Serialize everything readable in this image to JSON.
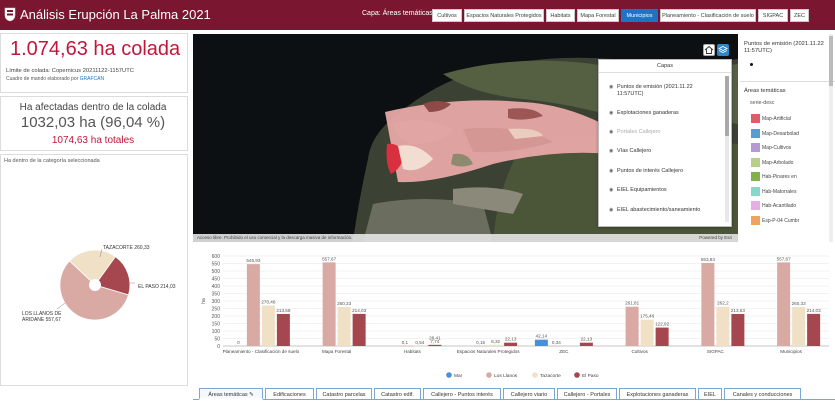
{
  "header": {
    "title": "Análisis Erupción La Palma 2021",
    "capa_label": "Capa: Áreas temáticas",
    "capa_buttons": [
      "Cultivos",
      "Espacios Naturales Protegidos",
      "Habitats",
      "Mapa Forestal",
      "Municipios",
      "Planeamiento - Clasificación de suelo",
      "SIGPAC",
      "ZEC"
    ],
    "active_button": "Municipios"
  },
  "summary": {
    "colada_value": "1.074,63 ha colada",
    "limite_text": "Límite de colada: Copernicus 20211122-1157UTC",
    "cuadro_text": "Cuadro de mando elaborado por",
    "cuadro_link": "GRAFCAN"
  },
  "afectadas": {
    "title": "Ha afectadas dentro de la colada",
    "value": "1032,03 ha (96,04 %)",
    "total": "1074,63 ha totales"
  },
  "category": {
    "title": "Ha dentro de la categoría seleccionada",
    "pie_labels": [
      "TAZACORTE 260,33",
      "EL PASO 214,03",
      "LOS LLANOS DE ARIDANE 557,67"
    ]
  },
  "map": {
    "attribution": "Acceso libre. Prohibido el uso comercial y la descarga masiva de información.",
    "powered": "Powered by Esri",
    "home_icon": "home-icon",
    "layers_icon": "layers-icon"
  },
  "layers_popup": {
    "title": "Capas",
    "items": [
      "Puntos de emisión (2021.11.22 11:57UTC)",
      "Explotaciones ganaderas",
      "Portales Callejero",
      "Vías Callejero",
      "Puntos de interés Callejero",
      "EIEL Equipamientos",
      "EIEL abastecimiento/saneamiento"
    ]
  },
  "legend": {
    "emission_title": "Puntos de emisión (2021.11.22 11:57UTC)",
    "areas_title": "Áreas temáticas",
    "sub_title": "serie-desc",
    "items": [
      {
        "label": "Map-Artificial",
        "color": "#e45a6a"
      },
      {
        "label": "Map-Desarbolad",
        "color": "#5b9bd5"
      },
      {
        "label": "Map-Cultivos",
        "color": "#b59ad6"
      },
      {
        "label": "Map-Arbolado",
        "color": "#b7cf8b"
      },
      {
        "label": "Hab-Pinares en",
        "color": "#7fb24a"
      },
      {
        "label": "Hab-Matorrales",
        "color": "#84d9c9"
      },
      {
        "label": "Hab-Acantilado",
        "color": "#e3aee6"
      },
      {
        "label": "Esp-P-04 Cumbr",
        "color": "#efa35e"
      }
    ]
  },
  "chart_data": {
    "type": "bar",
    "categories": [
      "Planeamiento - Clasificación de suelo",
      "Mapa Forestal",
      "Habitats",
      "Espacios Naturales Protegidos",
      "ZEC",
      "Cultivos",
      "SIGPAC",
      "Municipios"
    ],
    "ylabel": "ha",
    "ylim": [
      0,
      600
    ],
    "yticks": [
      0,
      50,
      100,
      150,
      200,
      250,
      300,
      350,
      400,
      450,
      500,
      550,
      600
    ],
    "series": [
      {
        "name": "Mar",
        "color": "#4a90d9",
        "values": [
          0,
          0,
          0,
          0,
          42.14,
          0,
          0,
          0
        ],
        "labels": [
          "0",
          "",
          "",
          "",
          "42,14",
          "",
          "",
          ""
        ]
      },
      {
        "name": "Los Llanos",
        "color": "#d9aaa4",
        "values": [
          545.93,
          557.67,
          0.1,
          0.16,
          0.34,
          261.81,
          553.83,
          557.67
        ],
        "labels": [
          "545,93",
          "557,67",
          "0,1",
          "0,16",
          "0,34",
          "261,81",
          "553,83",
          "557,67"
        ]
      },
      {
        "name": "Tazacorte",
        "color": "#efe0c6",
        "values": [
          270.46,
          260.33,
          0.54,
          8.32,
          0,
          175.46,
          262.2,
          260.33
        ],
        "labels": [
          "270,46",
          "260,33",
          "0,54",
          "8,32",
          "",
          "175,46",
          "262,2",
          "260,33"
        ]
      },
      {
        "name": "El Paso",
        "color": "#a6464e",
        "values": [
          213.58,
          214.03,
          7.74,
          22.13,
          22.13,
          122.92,
          213.53,
          214.03
        ],
        "labels": [
          "213,58",
          "214,03",
          "7,74",
          "22,13",
          "22,13",
          "122,92",
          "213,53",
          "214,03"
        ]
      }
    ],
    "extra_label": {
      "text": "28,41",
      "category_index": 2
    }
  },
  "bottom_tabs": [
    "Áreas temáticas",
    "Edificaciones",
    "Catastro parcelas",
    "Catastro edif.",
    "Callejero - Puntos interés",
    "Callejero viario",
    "Callejero - Portales",
    "Explotaciones ganaderas",
    "EIEL",
    "Canales y conducciones"
  ]
}
